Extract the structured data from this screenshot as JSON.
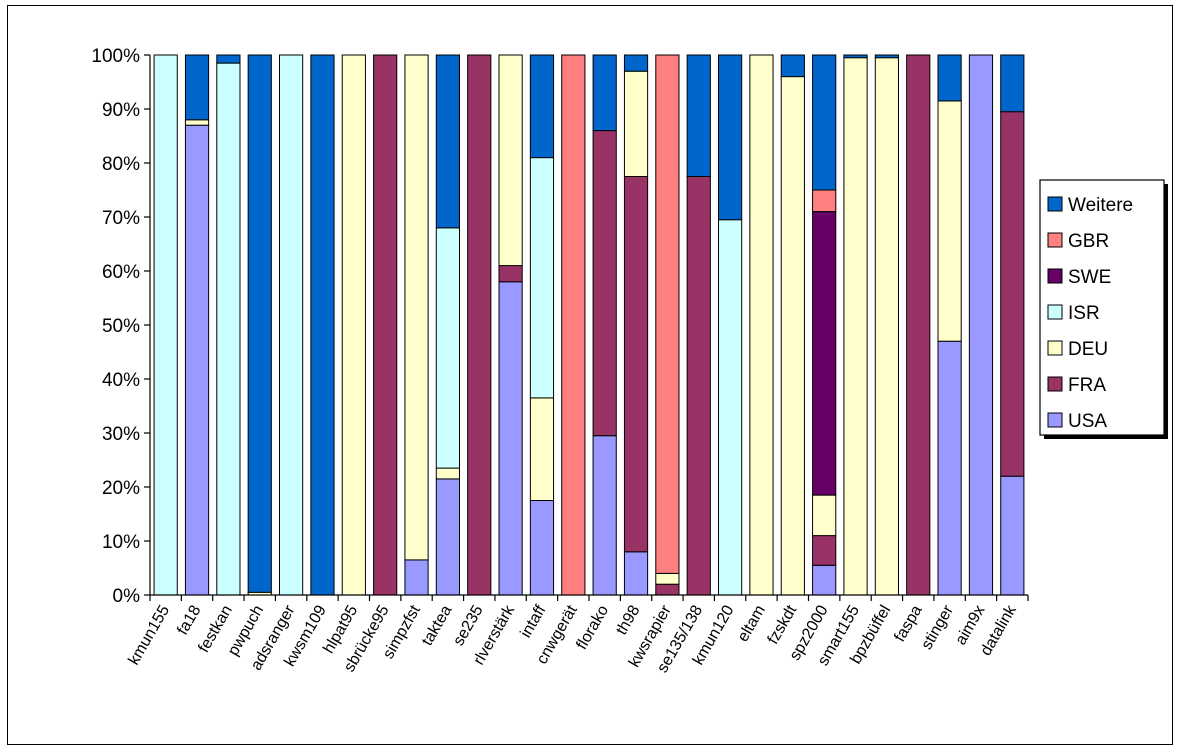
{
  "chart_data": {
    "type": "bar",
    "stacked": true,
    "percent": true,
    "categories": [
      "kmun155",
      "fa18",
      "festkan",
      "pwpuch",
      "adsranger",
      "kwsm109",
      "hlpat95",
      "sbrücke95",
      "simpzfst",
      "taktea",
      "se235",
      "rlverstärk",
      "intaff",
      "cnwgerät",
      "florako",
      "th98",
      "kwsrapier",
      "se135/138",
      "kmun120",
      "eltam",
      "fzskdt",
      "spz2000",
      "smart155",
      "bpzbüffel",
      "faspa",
      "stinger",
      "aim9x",
      "datalink"
    ],
    "y_ticks": [
      "0%",
      "10%",
      "20%",
      "30%",
      "40%",
      "50%",
      "60%",
      "70%",
      "80%",
      "90%",
      "100%"
    ],
    "ylim": [
      0,
      100
    ],
    "grid": false,
    "legend_position": "right",
    "series": [
      {
        "name": "USA",
        "color": "#9999ff",
        "values": [
          0,
          87,
          0,
          0,
          0,
          0,
          0,
          0,
          6.5,
          21.5,
          0,
          58,
          17.5,
          0,
          29.5,
          8,
          0,
          0,
          0,
          0,
          0,
          5.5,
          0,
          0,
          0,
          47,
          100,
          22
        ]
      },
      {
        "name": "FRA",
        "color": "#993366",
        "values": [
          0,
          0,
          0,
          0,
          0,
          0,
          0,
          100,
          0,
          0,
          100,
          3,
          0,
          0,
          56.5,
          69.5,
          2,
          77.5,
          0,
          0,
          0,
          5.5,
          0,
          0,
          100,
          0,
          0,
          67.5
        ]
      },
      {
        "name": "DEU",
        "color": "#ffffcc",
        "values": [
          0,
          1,
          0,
          0.5,
          0,
          0,
          100,
          0,
          93.5,
          2,
          0,
          39,
          19,
          0,
          0,
          19.5,
          2,
          0,
          0,
          100,
          96,
          7.5,
          99.5,
          99.5,
          0,
          44.5,
          0,
          0
        ]
      },
      {
        "name": "ISR",
        "color": "#ccffff",
        "values": [
          100,
          0,
          98.5,
          0,
          100,
          0,
          0,
          0,
          0,
          44.5,
          0,
          0,
          44.5,
          0,
          0,
          0,
          0,
          0,
          69.5,
          0,
          0,
          0,
          0,
          0,
          0,
          0,
          0,
          0
        ]
      },
      {
        "name": "SWE",
        "color": "#660066",
        "values": [
          0,
          0,
          0,
          0,
          0,
          0,
          0,
          0,
          0,
          0,
          0,
          0,
          0,
          0,
          0,
          0,
          0,
          0,
          0,
          0,
          0,
          52.5,
          0,
          0,
          0,
          0,
          0,
          0
        ]
      },
      {
        "name": "GBR",
        "color": "#ff8080",
        "values": [
          0,
          0,
          0,
          0,
          0,
          0,
          0,
          0,
          0,
          0,
          0,
          0,
          0,
          100,
          0,
          0,
          96,
          0,
          0,
          0,
          0,
          4,
          0,
          0,
          0,
          0,
          0,
          0
        ]
      },
      {
        "name": "Weitere",
        "color": "#0066cc",
        "values": [
          0,
          12,
          1.5,
          99.5,
          0,
          100,
          0,
          0,
          0,
          32,
          0,
          0,
          19,
          0,
          14,
          3,
          0,
          22.5,
          30.5,
          0,
          4,
          25,
          0.5,
          0.5,
          0,
          8.5,
          0,
          10.5
        ]
      }
    ],
    "legend_order": [
      "Weitere",
      "GBR",
      "SWE",
      "ISR",
      "DEU",
      "FRA",
      "USA"
    ]
  }
}
